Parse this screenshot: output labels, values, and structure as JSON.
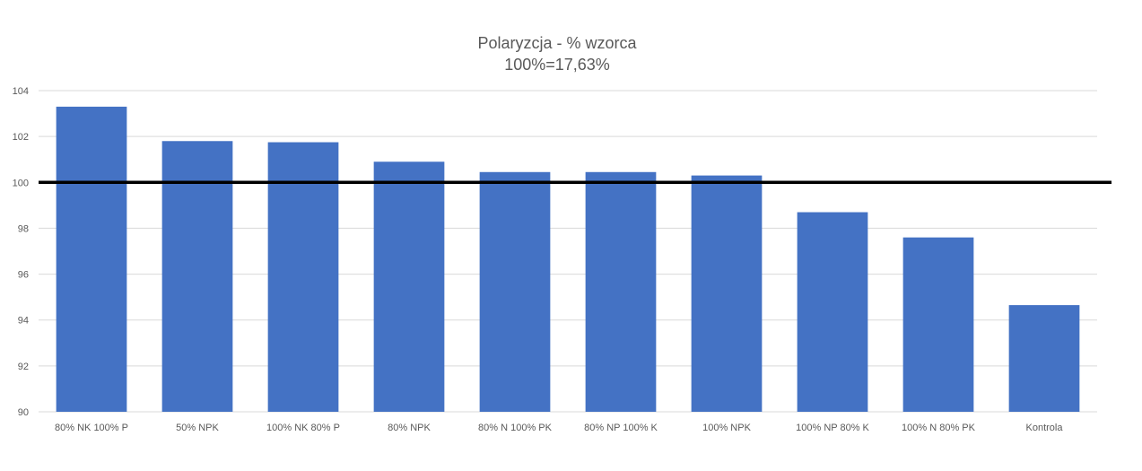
{
  "chart_data": {
    "type": "bar",
    "title": "Polaryzcja - % wzorca",
    "subtitle": "100%=17,63%",
    "xlabel": "",
    "ylabel": "",
    "categories": [
      "80% NK 100% P",
      "50% NPK",
      "100% NK 80% P",
      "80% NPK",
      "80% N 100% PK",
      "80% NP 100% K",
      "100% NPK",
      "100% NP 80% K",
      "100% N 80% PK",
      "Kontrola"
    ],
    "values": [
      103.3,
      101.8,
      101.75,
      100.9,
      100.45,
      100.45,
      100.3,
      98.7,
      97.6,
      94.65
    ],
    "ylim": [
      90,
      104
    ],
    "yticks": [
      "90",
      "92",
      "94",
      "96",
      "98",
      "100",
      "102",
      "104"
    ],
    "reference_line": 100,
    "grid": true,
    "legend": "none",
    "colors": {
      "bar": "#4472C4",
      "grid": "#D9D9D9",
      "reference_line": "#000000",
      "text": "#595959"
    }
  }
}
